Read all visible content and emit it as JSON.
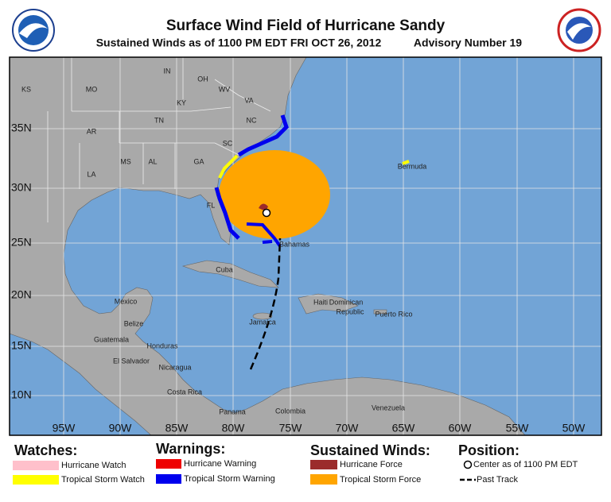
{
  "header": {
    "title": "Surface Wind Field of Hurricane Sandy",
    "subtitle": "Sustained Winds as of 1100 PM EDT FRI OCT 26, 2012",
    "advisory": "Advisory Number 19"
  },
  "map": {
    "places": [
      "KS",
      "MO",
      "IN",
      "OH",
      "KY",
      "WV",
      "VA",
      "TN",
      "NC",
      "SC",
      "AR",
      "MS",
      "AL",
      "GA",
      "LA",
      "FL",
      "Bermuda",
      "Bahamas",
      "Cuba",
      "Mexico",
      "Belize",
      "Guatemala",
      "Honduras",
      "El Salvador",
      "Nicaragua",
      "Costa Rica",
      "Panama",
      "Colombia",
      "Venezuela",
      "Jamaica",
      "Haiti",
      "Dominican",
      "Republic",
      "Puerto Rico"
    ],
    "lat_labels": [
      "35N",
      "30N",
      "25N",
      "20N",
      "15N",
      "10N"
    ],
    "lon_labels": [
      "95W",
      "90W",
      "85W",
      "80W",
      "75W",
      "70W",
      "65W",
      "60W",
      "55W",
      "50W"
    ]
  },
  "legend": {
    "watches": {
      "title": "Watches:",
      "items": [
        "Hurricane Watch",
        "Tropical Storm Watch"
      ]
    },
    "warnings": {
      "title": "Warnings:",
      "items": [
        "Hurricane Warning",
        "Tropical Storm Warning"
      ]
    },
    "winds": {
      "title": "Sustained Winds:",
      "items": [
        "Hurricane Force",
        "Tropical Storm Force"
      ]
    },
    "position": {
      "title": "Position:",
      "items": [
        "Center as of 1100 PM EDT",
        "Past Track"
      ]
    }
  }
}
